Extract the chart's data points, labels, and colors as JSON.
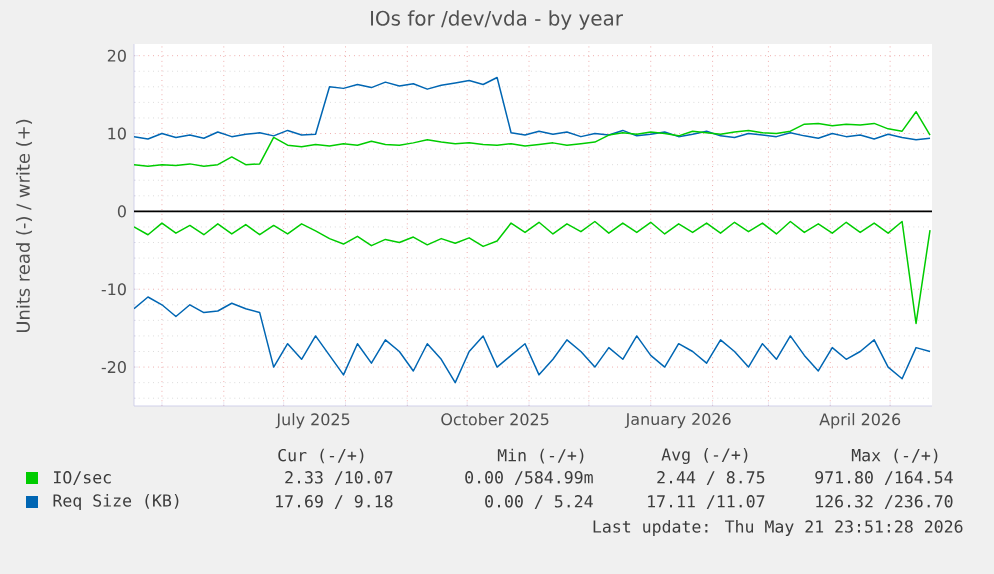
{
  "chart_data": {
    "type": "line",
    "title": "IOs for /dev/vda - by year",
    "ylabel": "Units read (-) / write (+)",
    "x": [
      "2025-04-17",
      "2025-04-24",
      "2025-05-01",
      "2025-05-08",
      "2025-05-15",
      "2025-05-22",
      "2025-05-29",
      "2025-06-05",
      "2025-06-12",
      "2025-06-19",
      "2025-06-26",
      "2025-07-03",
      "2025-07-10",
      "2025-07-17",
      "2025-07-24",
      "2025-07-31",
      "2025-08-07",
      "2025-08-14",
      "2025-08-21",
      "2025-08-28",
      "2025-09-04",
      "2025-09-11",
      "2025-09-18",
      "2025-09-25",
      "2025-10-02",
      "2025-10-09",
      "2025-10-16",
      "2025-10-23",
      "2025-10-30",
      "2025-11-06",
      "2025-11-13",
      "2025-11-20",
      "2025-11-27",
      "2025-12-04",
      "2025-12-11",
      "2025-12-18",
      "2025-12-25",
      "2026-01-01",
      "2026-01-08",
      "2026-01-15",
      "2026-01-22",
      "2026-01-29",
      "2026-02-05",
      "2026-02-12",
      "2026-02-19",
      "2026-02-26",
      "2026-03-05",
      "2026-03-12",
      "2026-03-19",
      "2026-03-26",
      "2026-04-02",
      "2026-04-09",
      "2026-04-16",
      "2026-04-23",
      "2026-04-30",
      "2026-05-07",
      "2026-05-14",
      "2026-05-21"
    ],
    "series": [
      {
        "color": "#0066b3",
        "values": [
          -12.5,
          -11,
          -12,
          -13.5,
          -12,
          -13,
          -12.8,
          -11.8,
          -12.5,
          -13,
          -20,
          -17,
          -19,
          -16,
          -18.5,
          -21,
          -17,
          -19.5,
          -16.5,
          -18,
          -20.5,
          -17,
          -19,
          -22,
          -18,
          -16,
          -20,
          -18.5,
          -17,
          -21,
          -19,
          -16.5,
          -18,
          -20,
          -17.5,
          -19,
          -16,
          -18.5,
          -20,
          -17,
          -18,
          -19.5,
          -16.5,
          -18,
          -20,
          -17,
          -19,
          -16,
          -18.5,
          -20.5,
          -17.5,
          -19,
          -18,
          -16.5,
          -20,
          -21.5,
          -17.5,
          -18
        ]
      },
      {
        "name": "Req Size (KB)",
        "color": "#0066b3",
        "values": [
          9.6,
          9.3,
          10,
          9.5,
          9.8,
          9.4,
          10.2,
          9.6,
          9.9,
          10.1,
          9.7,
          10.4,
          9.8,
          9.9,
          16,
          15.8,
          16.3,
          15.9,
          16.6,
          16.1,
          16.4,
          15.7,
          16.2,
          16.5,
          16.8,
          16.3,
          17.2,
          10.1,
          9.8,
          10.3,
          9.9,
          10.2,
          9.6,
          10,
          9.8,
          10.4,
          9.7,
          9.9,
          10.2,
          9.6,
          9.9,
          10.3,
          9.7,
          9.5,
          10,
          9.8,
          9.6,
          10.1,
          9.7,
          9.4,
          10,
          9.6,
          9.8,
          9.3,
          9.9,
          9.5,
          9.2,
          9.4
        ]
      },
      {
        "color": "#00cc00",
        "values": [
          -2,
          -3,
          -1.5,
          -2.8,
          -1.8,
          -3,
          -1.6,
          -2.9,
          -1.7,
          -3,
          -1.8,
          -2.9,
          -1.6,
          -2.5,
          -3.5,
          -4.2,
          -3.2,
          -4.4,
          -3.6,
          -4,
          -3.3,
          -4.3,
          -3.5,
          -4.1,
          -3.4,
          -4.5,
          -3.8,
          -1.5,
          -2.7,
          -1.4,
          -2.9,
          -1.6,
          -2.6,
          -1.3,
          -2.8,
          -1.5,
          -2.7,
          -1.4,
          -2.9,
          -1.6,
          -2.7,
          -1.5,
          -2.8,
          -1.4,
          -2.6,
          -1.5,
          -2.9,
          -1.3,
          -2.7,
          -1.6,
          -2.8,
          -1.4,
          -2.7,
          -1.5,
          -2.8,
          -1.3,
          -14.4,
          -2.4
        ]
      },
      {
        "name": "IO/sec",
        "color": "#00cc00",
        "values": [
          6,
          5.8,
          6,
          5.9,
          6.1,
          5.8,
          6,
          7,
          6,
          6.1,
          9.5,
          8.5,
          8.3,
          8.6,
          8.4,
          8.7,
          8.5,
          9,
          8.6,
          8.5,
          8.8,
          9.2,
          8.9,
          8.7,
          8.8,
          8.6,
          8.5,
          8.7,
          8.4,
          8.6,
          8.8,
          8.5,
          8.7,
          8.9,
          9.8,
          10.1,
          9.9,
          10.2,
          10,
          9.7,
          10.3,
          10.1,
          9.9,
          10.2,
          10.4,
          10.1,
          10,
          10.3,
          11.2,
          11.3,
          11,
          11.2,
          11.1,
          11.3,
          10.6,
          10.3,
          12.8,
          9.8
        ]
      }
    ],
    "xlim": [
      "2025-04-17",
      "2026-05-22"
    ],
    "xticks": [
      {
        "value": "2025-05-01",
        "label": null
      },
      {
        "value": "2025-06-01",
        "label": null
      },
      {
        "value": "2025-07-01",
        "label": null
      },
      {
        "value": "2025-08-01",
        "label": null
      },
      {
        "value": "2025-09-01",
        "label": null
      },
      {
        "value": "2025-10-01",
        "label": null
      },
      {
        "value": "2025-11-01",
        "label": null
      },
      {
        "value": "2025-12-01",
        "label": null
      },
      {
        "value": "2026-01-01",
        "label": null
      },
      {
        "value": "2026-02-01",
        "label": null
      },
      {
        "value": "2026-03-01",
        "label": null
      },
      {
        "value": "2026-04-01",
        "label": null
      },
      {
        "value": "2026-05-01",
        "label": null
      },
      {
        "value": "2025-07-16",
        "label": "July 2025"
      },
      {
        "value": "2025-10-15",
        "label": "October 2025"
      },
      {
        "value": "2026-01-15",
        "label": "January 2026"
      },
      {
        "value": "2026-04-16",
        "label": "April 2026"
      }
    ],
    "ylim": [
      -25,
      21.5
    ],
    "yticks": [
      -20,
      -10,
      0,
      10,
      20,
      {
        "value": -24,
        "label": null
      },
      {
        "value": -22,
        "label": null
      },
      {
        "value": -18,
        "label": null
      },
      {
        "value": -16,
        "label": null
      },
      {
        "value": -14,
        "label": null
      },
      {
        "value": -12,
        "label": null
      },
      {
        "value": -8,
        "label": null
      },
      {
        "value": -6,
        "label": null
      },
      {
        "value": -4,
        "label": null
      },
      {
        "value": -2,
        "label": null
      },
      {
        "value": 2,
        "label": null
      },
      {
        "value": 4,
        "label": null
      },
      {
        "value": 6,
        "label": null
      },
      {
        "value": 8,
        "label": null
      },
      {
        "value": 12,
        "label": null
      },
      {
        "value": 14,
        "label": null
      },
      {
        "value": 16,
        "label": null
      },
      {
        "value": 18,
        "label": null
      }
    ],
    "ref_lines": [
      {
        "axis": "y",
        "value": 0,
        "color": "#000000"
      }
    ],
    "grid": true,
    "legend": "bottom left",
    "annotations": [
      "Cur (-/+)",
      "Min (-/+)",
      "Avg (-/+)",
      "Max (-/+)",
      "2.33 /10.07",
      "0.00 /584.99m",
      "2.44 / 8.75",
      "971.80 /164.54",
      "17.69 / 9.18",
      "0.00 / 5.24",
      "17.11 /11.07",
      "126.32 /236.70",
      "Last update: Thu May 21 23:51:28 2026"
    ]
  }
}
